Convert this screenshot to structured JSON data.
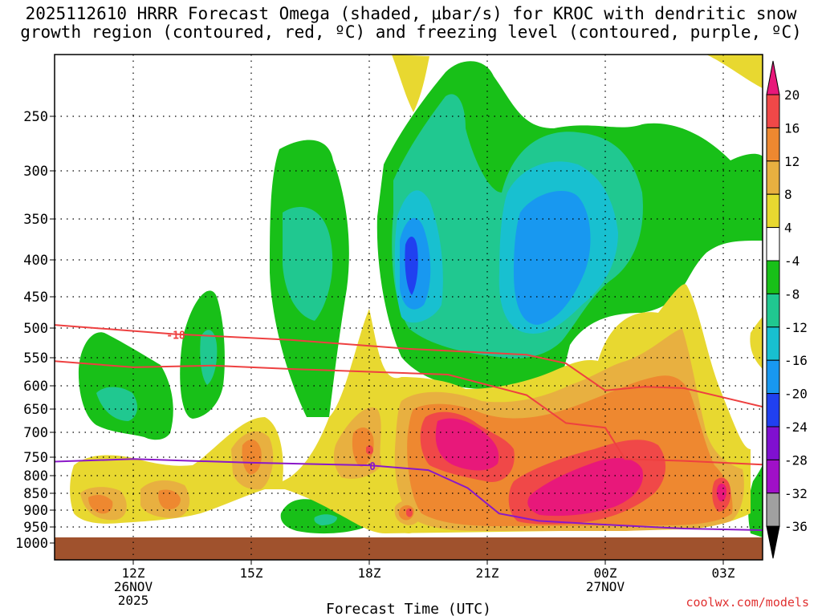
{
  "title_line1": "2025112610 HRRR Forecast Omega (shaded, μbar/s) for KROC with dendritic snow",
  "title_line2": "growth region (contoured, red, ºC) and freezing level (contoured, purple, ºC)",
  "credit": "coolwx.com/models",
  "colors": {
    "grid": "#000000",
    "ground": "#a0522d",
    "dgz_line": "#ee4040",
    "freezing_line": "#8a18c8"
  },
  "chart_data": {
    "type": "heatmap",
    "xlabel": "Forecast Time (UTC)",
    "ylabel": "",
    "xlim_hours": [
      10,
      28
    ],
    "ylim_hpa": [
      1000,
      200
    ],
    "y_ticks": [
      {
        "value": 250,
        "label": "250"
      },
      {
        "value": 300,
        "label": "300"
      },
      {
        "value": 350,
        "label": "350"
      },
      {
        "value": 400,
        "label": "400"
      },
      {
        "value": 450,
        "label": "450"
      },
      {
        "value": 500,
        "label": "500"
      },
      {
        "value": 550,
        "label": "550"
      },
      {
        "value": 600,
        "label": "600"
      },
      {
        "value": 650,
        "label": "650"
      },
      {
        "value": 700,
        "label": "700"
      },
      {
        "value": 750,
        "label": "750"
      },
      {
        "value": 800,
        "label": "800"
      },
      {
        "value": 850,
        "label": "850"
      },
      {
        "value": 900,
        "label": "900"
      },
      {
        "value": 950,
        "label": "950"
      },
      {
        "value": 1000,
        "label": "1000"
      }
    ],
    "x_ticks": [
      {
        "hour": 12,
        "label": "12Z",
        "sub1": "26NOV",
        "sub2": "2025"
      },
      {
        "hour": 15,
        "label": "15Z",
        "sub1": "",
        "sub2": ""
      },
      {
        "hour": 18,
        "label": "18Z",
        "sub1": "",
        "sub2": ""
      },
      {
        "hour": 21,
        "label": "21Z",
        "sub1": "",
        "sub2": ""
      },
      {
        "hour": 24,
        "label": "00Z",
        "sub1": "27NOV",
        "sub2": ""
      },
      {
        "hour": 27,
        "label": "03Z",
        "sub1": "",
        "sub2": ""
      }
    ],
    "colorbar": {
      "labels": [
        "20",
        "16",
        "12",
        "8",
        "4",
        "-4",
        "-8",
        "-12",
        "-16",
        "-20",
        "-24",
        "-28",
        "-32",
        "-36"
      ],
      "bins": [
        {
          "range": "> 20",
          "color": "#e8187a"
        },
        {
          "range": "16 to 20",
          "color": "#f04848"
        },
        {
          "range": "12 to 16",
          "color": "#ee8830"
        },
        {
          "range": "8 to 12",
          "color": "#e8b040"
        },
        {
          "range": "4 to 8",
          "color": "#e8d830"
        },
        {
          "range": "-4 to 4",
          "color": "#ffffff"
        },
        {
          "range": "-8 to -4",
          "color": "#18c018"
        },
        {
          "range": "-12 to -8",
          "color": "#20c890"
        },
        {
          "range": "-16 to -12",
          "color": "#18c0d0"
        },
        {
          "range": "-20 to -16",
          "color": "#1898f0"
        },
        {
          "range": "-24 to -20",
          "color": "#2040f0"
        },
        {
          "range": "-28 to -24",
          "color": "#8010d0"
        },
        {
          "range": "-32 to -28",
          "color": "#a010c8"
        },
        {
          "range": "-36 to -32",
          "color": "#a0a0a0"
        },
        {
          "range": "< -36",
          "color": "#000000"
        }
      ]
    },
    "contours": [
      {
        "name": "dgz -18C upper",
        "label": "-18",
        "color": "#ee4040",
        "points": [
          [
            10,
            495
          ],
          [
            13,
            510
          ],
          [
            16,
            520
          ],
          [
            19,
            535
          ],
          [
            22,
            545
          ],
          [
            23,
            560
          ],
          [
            24,
            610
          ],
          [
            25,
            602
          ],
          [
            26,
            605
          ],
          [
            28,
            645
          ]
        ]
      },
      {
        "name": "dgz lower",
        "label": "",
        "color": "#ee4040",
        "points": [
          [
            10,
            556
          ],
          [
            12,
            567
          ],
          [
            14,
            564
          ],
          [
            16,
            570
          ],
          [
            18,
            575
          ],
          [
            20,
            580
          ],
          [
            22,
            620
          ],
          [
            23,
            680
          ],
          [
            24,
            690
          ],
          [
            24.5,
            755
          ],
          [
            26,
            760
          ],
          [
            28,
            770
          ]
        ]
      },
      {
        "name": "freezing level",
        "label": "0",
        "color": "#8a18c8",
        "points": [
          [
            10,
            762
          ],
          [
            12,
            755
          ],
          [
            15,
            765
          ],
          [
            18,
            772
          ],
          [
            19.5,
            785
          ],
          [
            20.5,
            835
          ],
          [
            21.3,
            910
          ],
          [
            22.3,
            932
          ],
          [
            24,
            943
          ],
          [
            26,
            955
          ],
          [
            28,
            960
          ]
        ]
      }
    ],
    "omega_features": [
      {
        "name": "upper ascent plume A",
        "hour_center": 19.2,
        "p_center": 400,
        "peak": -22,
        "color": "#2040f0"
      },
      {
        "name": "upper ascent plume B",
        "hour_center": 22.5,
        "p_center": 390,
        "peak": -18,
        "color": "#1898f0"
      },
      {
        "name": "low-level sinking core",
        "hour_center": 20.5,
        "p_center": 720,
        "peak": 22,
        "color": "#e8187a"
      },
      {
        "name": "low-level sinking core 2",
        "hour_center": 23.5,
        "p_center": 850,
        "peak": 22,
        "color": "#e8187a"
      }
    ]
  }
}
